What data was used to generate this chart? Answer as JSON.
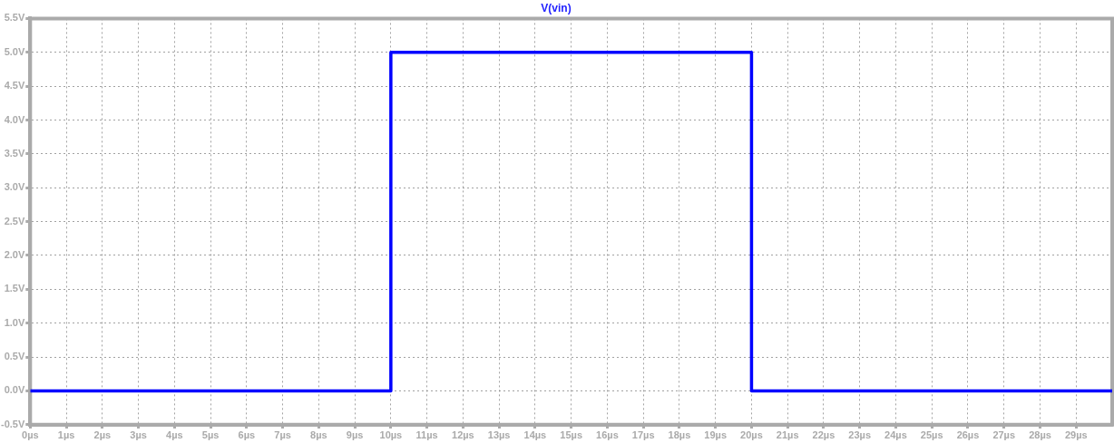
{
  "chart_data": {
    "type": "line",
    "title": "V(vin)",
    "x": [
      0,
      10,
      10,
      20,
      20,
      30
    ],
    "series": [
      {
        "color": "#0000ff",
        "values": [
          0,
          0,
          5,
          5,
          0,
          0
        ]
      }
    ],
    "xlim": [
      0,
      30
    ],
    "xticks": [
      {
        "value": 0,
        "label": "0µs"
      },
      {
        "value": 1,
        "label": "1µs"
      },
      {
        "value": 2,
        "label": "2µs"
      },
      {
        "value": 3,
        "label": "3µs"
      },
      {
        "value": 4,
        "label": "4µs"
      },
      {
        "value": 5,
        "label": "5µs"
      },
      {
        "value": 6,
        "label": "6µs"
      },
      {
        "value": 7,
        "label": "7µs"
      },
      {
        "value": 8,
        "label": "8µs"
      },
      {
        "value": 9,
        "label": "9µs"
      },
      {
        "value": 10,
        "label": "10µs"
      },
      {
        "value": 11,
        "label": "11µs"
      },
      {
        "value": 12,
        "label": "12µs"
      },
      {
        "value": 13,
        "label": "13µs"
      },
      {
        "value": 14,
        "label": "14µs"
      },
      {
        "value": 15,
        "label": "15µs"
      },
      {
        "value": 16,
        "label": "16µs"
      },
      {
        "value": 17,
        "label": "17µs"
      },
      {
        "value": 18,
        "label": "18µs"
      },
      {
        "value": 19,
        "label": "19µs"
      },
      {
        "value": 20,
        "label": "20µs"
      },
      {
        "value": 21,
        "label": "21µs"
      },
      {
        "value": 22,
        "label": "22µs"
      },
      {
        "value": 23,
        "label": "23µs"
      },
      {
        "value": 24,
        "label": "24µs"
      },
      {
        "value": 25,
        "label": "25µs"
      },
      {
        "value": 26,
        "label": "26µs"
      },
      {
        "value": 27,
        "label": "27µs"
      },
      {
        "value": 28,
        "label": "28µs"
      },
      {
        "value": 29,
        "label": "29µs"
      }
    ],
    "ylim": [
      -0.5,
      5.5
    ],
    "yticks": [
      {
        "value": -0.5,
        "label": "-0.5V"
      },
      {
        "value": 0,
        "label": "0.0V"
      },
      {
        "value": 0.5,
        "label": "0.5V"
      },
      {
        "value": 1,
        "label": "1.0V"
      },
      {
        "value": 1.5,
        "label": "1.5V"
      },
      {
        "value": 2,
        "label": "2.0V"
      },
      {
        "value": 2.5,
        "label": "2.5V"
      },
      {
        "value": 3,
        "label": "3.0V"
      },
      {
        "value": 3.5,
        "label": "3.5V"
      },
      {
        "value": 4,
        "label": "4.0V"
      },
      {
        "value": 4.5,
        "label": "4.5V"
      },
      {
        "value": 5,
        "label": "5.0V"
      },
      {
        "value": 5.5,
        "label": "5.5V"
      }
    ],
    "grid": true,
    "legend": false,
    "marker": "none",
    "line_style": "solid"
  }
}
